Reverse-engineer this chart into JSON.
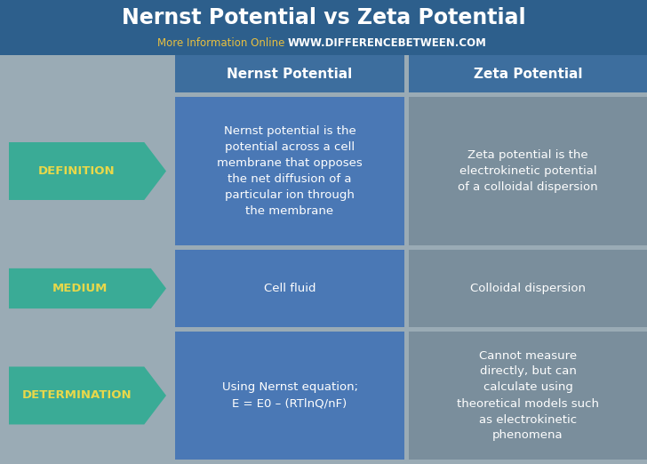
{
  "title": "Nernst Potential vs Zeta Potential",
  "subtitle_plain": "More Information Online",
  "subtitle_url": "WWW.DIFFERENCEBETWEEN.COM",
  "col1_header": "Nernst Potential",
  "col2_header": "Zeta Potential",
  "rows": [
    {
      "label": "DEFINITION",
      "col1": "Nernst potential is the\npotential across a cell\nmembrane that opposes\nthe net diffusion of a\nparticular ion through\nthe membrane",
      "col2": "Zeta potential is the\nelectrokinetic potential\nof a colloidal dispersion"
    },
    {
      "label": "MEDIUM",
      "col1": "Cell fluid",
      "col2": "Colloidal dispersion"
    },
    {
      "label": "DETERMINATION",
      "col1": "Using Nernst equation;\nE = E0 – (RTlnQ/nF)",
      "col2": "Cannot measure\ndirectly, but can\ncalculate using\ntheoretical models such\nas electrokinetic\nphenomena"
    }
  ],
  "bg_color": "#9aabb5",
  "title_bg_color": "#2d5f8c",
  "title_text_color": "#ffffff",
  "subtitle_plain_color": "#e8c040",
  "subtitle_url_color": "#ffffff",
  "col_header_bg": "#3d6e9e",
  "col_header_text": "#ffffff",
  "arrow_fill_color": "#3aab96",
  "arrow_text_color": "#e8d84a",
  "col1_bg": "#4a78b5",
  "col2_bg": "#7a8e9c",
  "cell_text_color": "#ffffff",
  "fig_w": 7.28,
  "fig_h": 5.22,
  "dpi": 100
}
